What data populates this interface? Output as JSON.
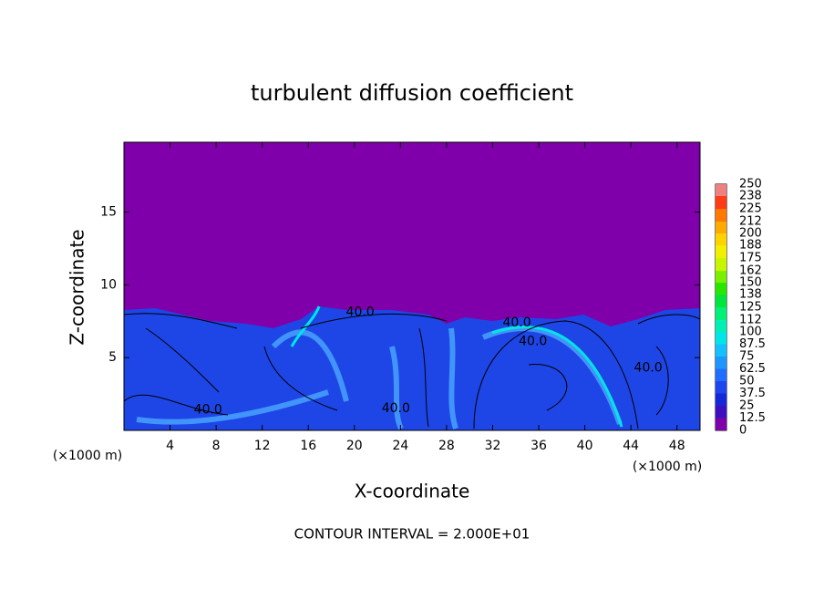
{
  "chart_data": {
    "type": "contour",
    "title": "turbulent diffusion coefficient",
    "xlabel": "X-coordinate",
    "ylabel": "Z-coordinate",
    "x_unit": "(×1000 m)",
    "footer": "CONTOUR INTERVAL = 2.000E+01",
    "xlim": [
      0,
      50
    ],
    "xticks": [
      4,
      8,
      12,
      16,
      20,
      24,
      28,
      32,
      36,
      40,
      44,
      48
    ],
    "ylim": [
      0,
      19.8
    ],
    "yticks": [
      5,
      10,
      15
    ],
    "grid": false,
    "colorbar": {
      "ticks": [
        0,
        12.5,
        25,
        37.5,
        50,
        62.5,
        75,
        87.5,
        100,
        112,
        125,
        138,
        150,
        162,
        175,
        188,
        200,
        212,
        225,
        238,
        250
      ],
      "colors": [
        "#7f00aa",
        "#3c10c0",
        "#1428d8",
        "#1e46f0",
        "#1e6eff",
        "#1e96ff",
        "#14c0ff",
        "#00e6e6",
        "#00f0b4",
        "#00f078",
        "#00e63c",
        "#28e600",
        "#78f000",
        "#c8f500",
        "#f0f000",
        "#ffd200",
        "#ffaa00",
        "#ff7800",
        "#ff3c14",
        "#f08080"
      ]
    },
    "contour_labels": {
      "x": [
        20.5,
        34.1,
        35.5,
        7.3,
        23.6,
        45.5
      ],
      "z": [
        8.1,
        7.4,
        6.1,
        1.4,
        1.5,
        4.3
      ],
      "values": [
        40,
        40,
        40,
        40,
        40,
        40
      ],
      "value_labels": [
        "40.0",
        "40.0",
        "40.0",
        "40.0",
        "40.0",
        "40.0"
      ]
    }
  }
}
